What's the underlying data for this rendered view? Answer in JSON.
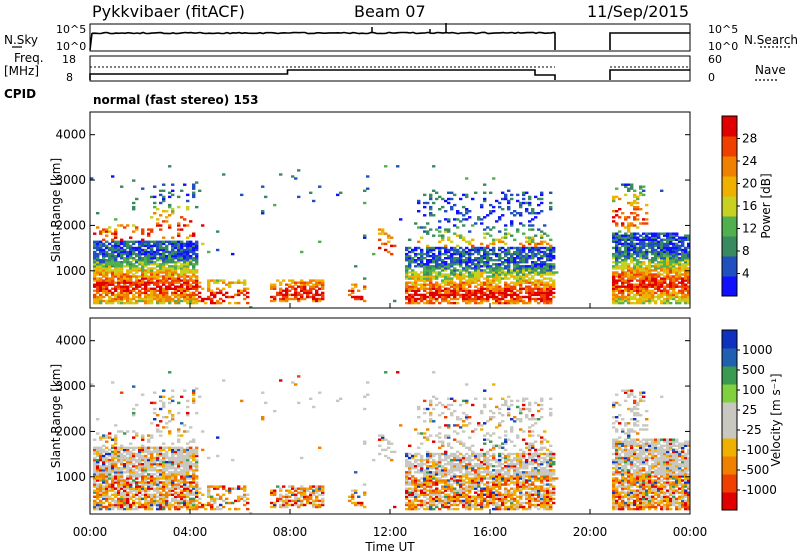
{
  "header": {
    "radar": "Pykkvibaer (fitACF)",
    "beam": "Beam 07",
    "date": "11/Sep/2015"
  },
  "status": {
    "nsky_label": "N.Sky",
    "nsky_ticks": [
      "10^5",
      "10^0"
    ],
    "freq_label": "Freq.",
    "freq_unit": "[MHz]",
    "freq_ticks": [
      "18",
      "8"
    ],
    "cpid_label": "CPID",
    "nsearch_label": "N.Search",
    "nsearch_ticks": [
      "10^5",
      "10^0"
    ],
    "nave_label": "Nave",
    "nave_ticks": [
      "60",
      "0"
    ],
    "cpid_text": "normal (fast stereo) 153"
  },
  "colors": {
    "power": [
      "#1010ff",
      "#2050c0",
      "#3a8a60",
      "#50b050",
      "#c8d020",
      "#f0b000",
      "#f08000",
      "#f04000",
      "#e00000"
    ],
    "velocity": [
      "#e00000",
      "#f04000",
      "#f08000",
      "#f0b000",
      "#c8c8c0",
      "#c8c8c0",
      "#80d040",
      "#3a9a50",
      "#2060b0",
      "#1030c0"
    ]
  },
  "chart_data": [
    {
      "type": "heatmap",
      "name": "power",
      "xlabel": "Time UT",
      "ylabel": "Slant Range [km]",
      "x_ticks": [
        "00:00",
        "04:00",
        "08:00",
        "12:00",
        "16:00",
        "20:00",
        "00:00"
      ],
      "y_ticks": [
        "1000",
        "2000",
        "3000",
        "4000"
      ],
      "xlim_hours": [
        0,
        24
      ],
      "ylim_km": [
        180,
        4500
      ],
      "colorbar_label": "Power [dB]",
      "colorbar_ticks": [
        "28",
        "24",
        "20",
        "16",
        "12",
        "8",
        "4"
      ],
      "colorbar_range": [
        0,
        30
      ],
      "data_gaps_hours": [
        [
          18.6,
          20.8
        ]
      ]
    },
    {
      "type": "heatmap",
      "name": "velocity",
      "xlabel": "Time UT",
      "ylabel": "Slant Range [km]",
      "x_ticks": [
        "00:00",
        "04:00",
        "08:00",
        "12:00",
        "16:00",
        "20:00",
        "00:00"
      ],
      "y_ticks": [
        "1000",
        "2000",
        "3000",
        "4000"
      ],
      "xlim_hours": [
        0,
        24
      ],
      "ylim_km": [
        180,
        4500
      ],
      "colorbar_label": "Velocity [m s⁻¹]",
      "colorbar_ticks": [
        "1000",
        "500",
        "100",
        "25",
        "-25",
        "-100",
        "-500",
        "-1000"
      ],
      "data_gaps_hours": [
        [
          18.6,
          20.8
        ]
      ]
    }
  ],
  "xaxis_title": "Time UT"
}
